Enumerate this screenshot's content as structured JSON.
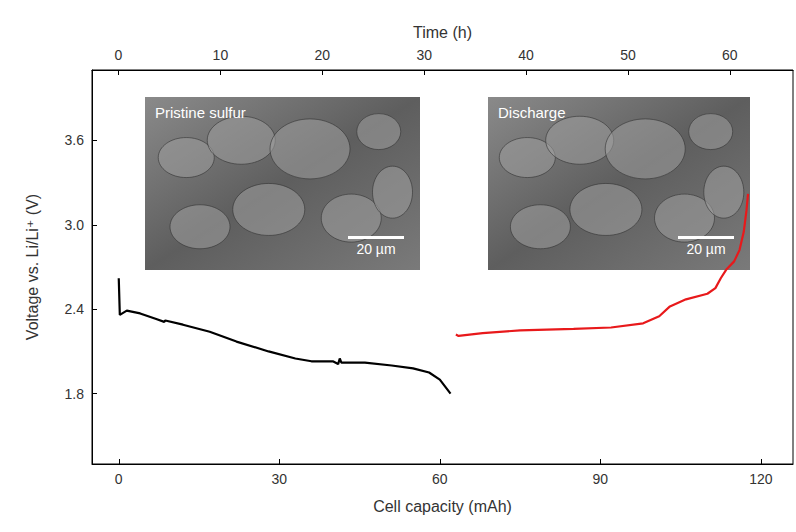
{
  "chart_data": {
    "type": "line",
    "x_label": "Cell capacity (mAh)",
    "x2_label": "Time (h)",
    "y_label": "Voltage vs. Li/Li⁺ (V)",
    "xlim": [
      -5,
      126
    ],
    "xticks": [
      0,
      30,
      60,
      90,
      120
    ],
    "x2lim": [
      -2.6,
      66.2
    ],
    "x2ticks": [
      0,
      10,
      20,
      30,
      40,
      50,
      60
    ],
    "ylim": [
      1.3,
      4.1
    ],
    "yticks": [
      1.8,
      2.4,
      {
        "value": 3,
        "label": "3.0"
      },
      3.6
    ],
    "grid": false,
    "annotations": [
      "Pristine sulfur",
      "20 µm",
      "Discharge",
      "20 µm"
    ],
    "series": [
      {
        "color": "#000000",
        "x": [
          0,
          0.2,
          1.5,
          4,
          7,
          8.5,
          8.7,
          12,
          17,
          22,
          28,
          33,
          36,
          40,
          41,
          41.3,
          41.6,
          46,
          51,
          55,
          58,
          60,
          62
        ],
        "values": [
          2.62,
          2.36,
          2.39,
          2.37,
          2.33,
          2.31,
          2.32,
          2.29,
          2.24,
          2.17,
          2.1,
          2.05,
          2.03,
          2.03,
          2.01,
          2.05,
          2.02,
          2.02,
          2.0,
          1.98,
          1.95,
          1.9,
          1.8
        ]
      },
      {
        "color": "#e8191b",
        "x": [
          63,
          63.5,
          68,
          75,
          85,
          92,
          98,
          101,
          103,
          106,
          110,
          111.5,
          112.5,
          113.5,
          115,
          116,
          116.8,
          117.3,
          117.6
        ],
        "values": [
          2.22,
          2.21,
          2.23,
          2.25,
          2.26,
          2.27,
          2.3,
          2.35,
          2.42,
          2.47,
          2.51,
          2.55,
          2.62,
          2.68,
          2.74,
          2.82,
          2.95,
          3.1,
          3.22
        ]
      }
    ]
  }
}
